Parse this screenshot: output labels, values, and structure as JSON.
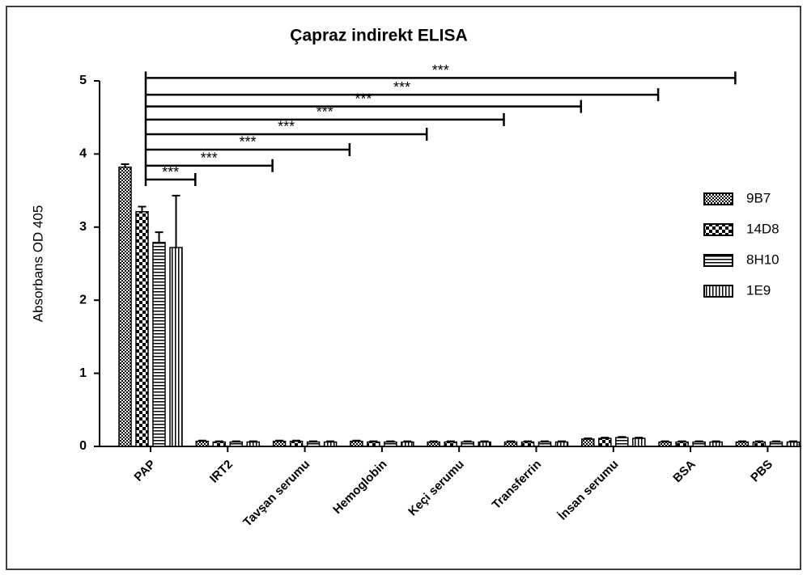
{
  "chart_data": {
    "type": "bar",
    "title": "Çapraz indirekt ELISA",
    "y_label": "Absorbans OD 405",
    "categories": [
      "PAP",
      "IRT2",
      "Tavşan serumu",
      "Hemoglobin",
      "Keçi serumu",
      "Transferrin",
      "İnsan serumu",
      "BSA",
      "PBS"
    ],
    "series": [
      {
        "name": "9B7",
        "color": "#000000",
        "pattern": "fine-check",
        "values": [
          3.82,
          0.07,
          0.07,
          0.07,
          0.06,
          0.06,
          0.1,
          0.06,
          0.06
        ],
        "errors": [
          0.04,
          0.01,
          0.01,
          0.01,
          0.01,
          0.01,
          0.01,
          0.01,
          0.01
        ]
      },
      {
        "name": "14D8",
        "color": "#000000",
        "pattern": "coarse-check",
        "values": [
          3.21,
          0.06,
          0.07,
          0.06,
          0.06,
          0.06,
          0.11,
          0.06,
          0.06
        ],
        "errors": [
          0.07,
          0.01,
          0.01,
          0.01,
          0.01,
          0.01,
          0.01,
          0.01,
          0.01
        ]
      },
      {
        "name": "8H10",
        "color": "#000000",
        "pattern": "horizontal",
        "values": [
          2.79,
          0.06,
          0.06,
          0.06,
          0.06,
          0.06,
          0.12,
          0.06,
          0.06
        ],
        "errors": [
          0.14,
          0.01,
          0.01,
          0.01,
          0.01,
          0.01,
          0.01,
          0.01,
          0.01
        ]
      },
      {
        "name": "1E9",
        "color": "#000000",
        "pattern": "vertical",
        "values": [
          2.72,
          0.06,
          0.06,
          0.06,
          0.06,
          0.06,
          0.11,
          0.06,
          0.06
        ],
        "errors": [
          0.71,
          0.01,
          0.01,
          0.01,
          0.01,
          0.01,
          0.01,
          0.01,
          0.01
        ]
      }
    ],
    "significance": {
      "labels": [
        "***",
        "***",
        "***",
        "***",
        "***",
        "***",
        "***",
        "***"
      ],
      "values": [
        3.65,
        3.84,
        4.06,
        4.27,
        4.47,
        4.65,
        4.81,
        5.04
      ]
    },
    "ylim": [
      0,
      5
    ],
    "yticks": [
      0,
      1,
      2,
      3,
      4,
      5
    ],
    "legend": "right"
  }
}
